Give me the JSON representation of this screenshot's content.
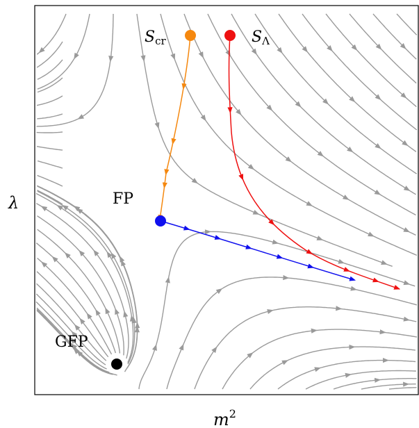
{
  "axes": {
    "x_label_base": "m",
    "x_label_sup": "2",
    "y_label": "λ"
  },
  "points": {
    "gfp": {
      "label": "GFP",
      "color": "#000000"
    },
    "fp": {
      "label": "FP",
      "color": "#1010ee"
    },
    "s_cr": {
      "label_base": "S",
      "label_sub": "cr",
      "color": "#f5880f"
    },
    "s_lambda": {
      "label_base": "S",
      "label_sub": "Λ",
      "color": "#ee1111"
    }
  },
  "colors": {
    "stream": "#9a9a9a",
    "frame": "#000000"
  }
}
